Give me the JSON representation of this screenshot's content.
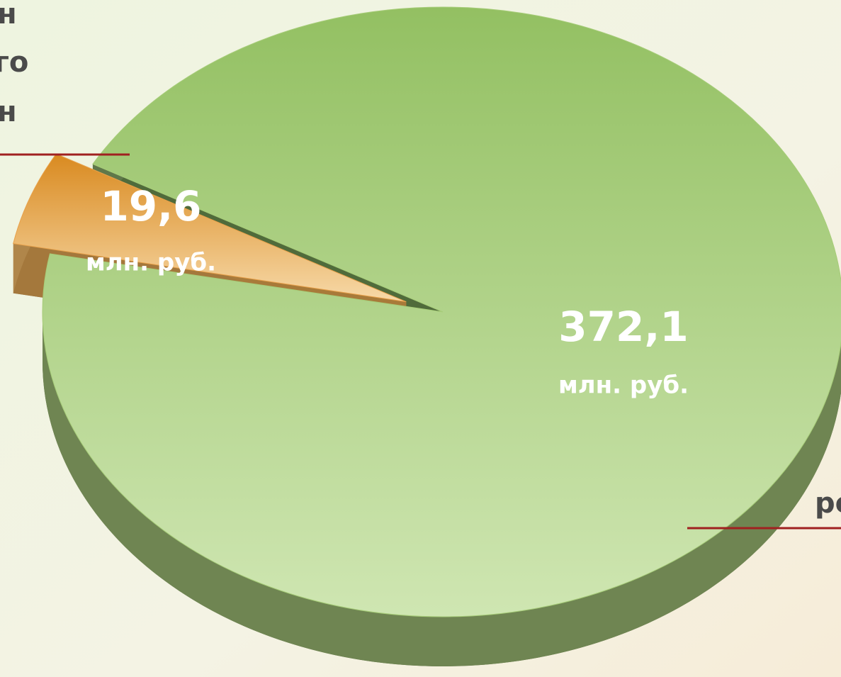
{
  "chart_data": {
    "type": "pie",
    "values": [
      19.6,
      372.1
    ],
    "value_labels": [
      "19,6",
      "372,1"
    ],
    "value_unit": "млн. руб.",
    "colors": [
      "#e8a14a",
      "#a6cc78"
    ],
    "annotations": [
      "н",
      "го",
      "н",
      "ре"
    ]
  }
}
